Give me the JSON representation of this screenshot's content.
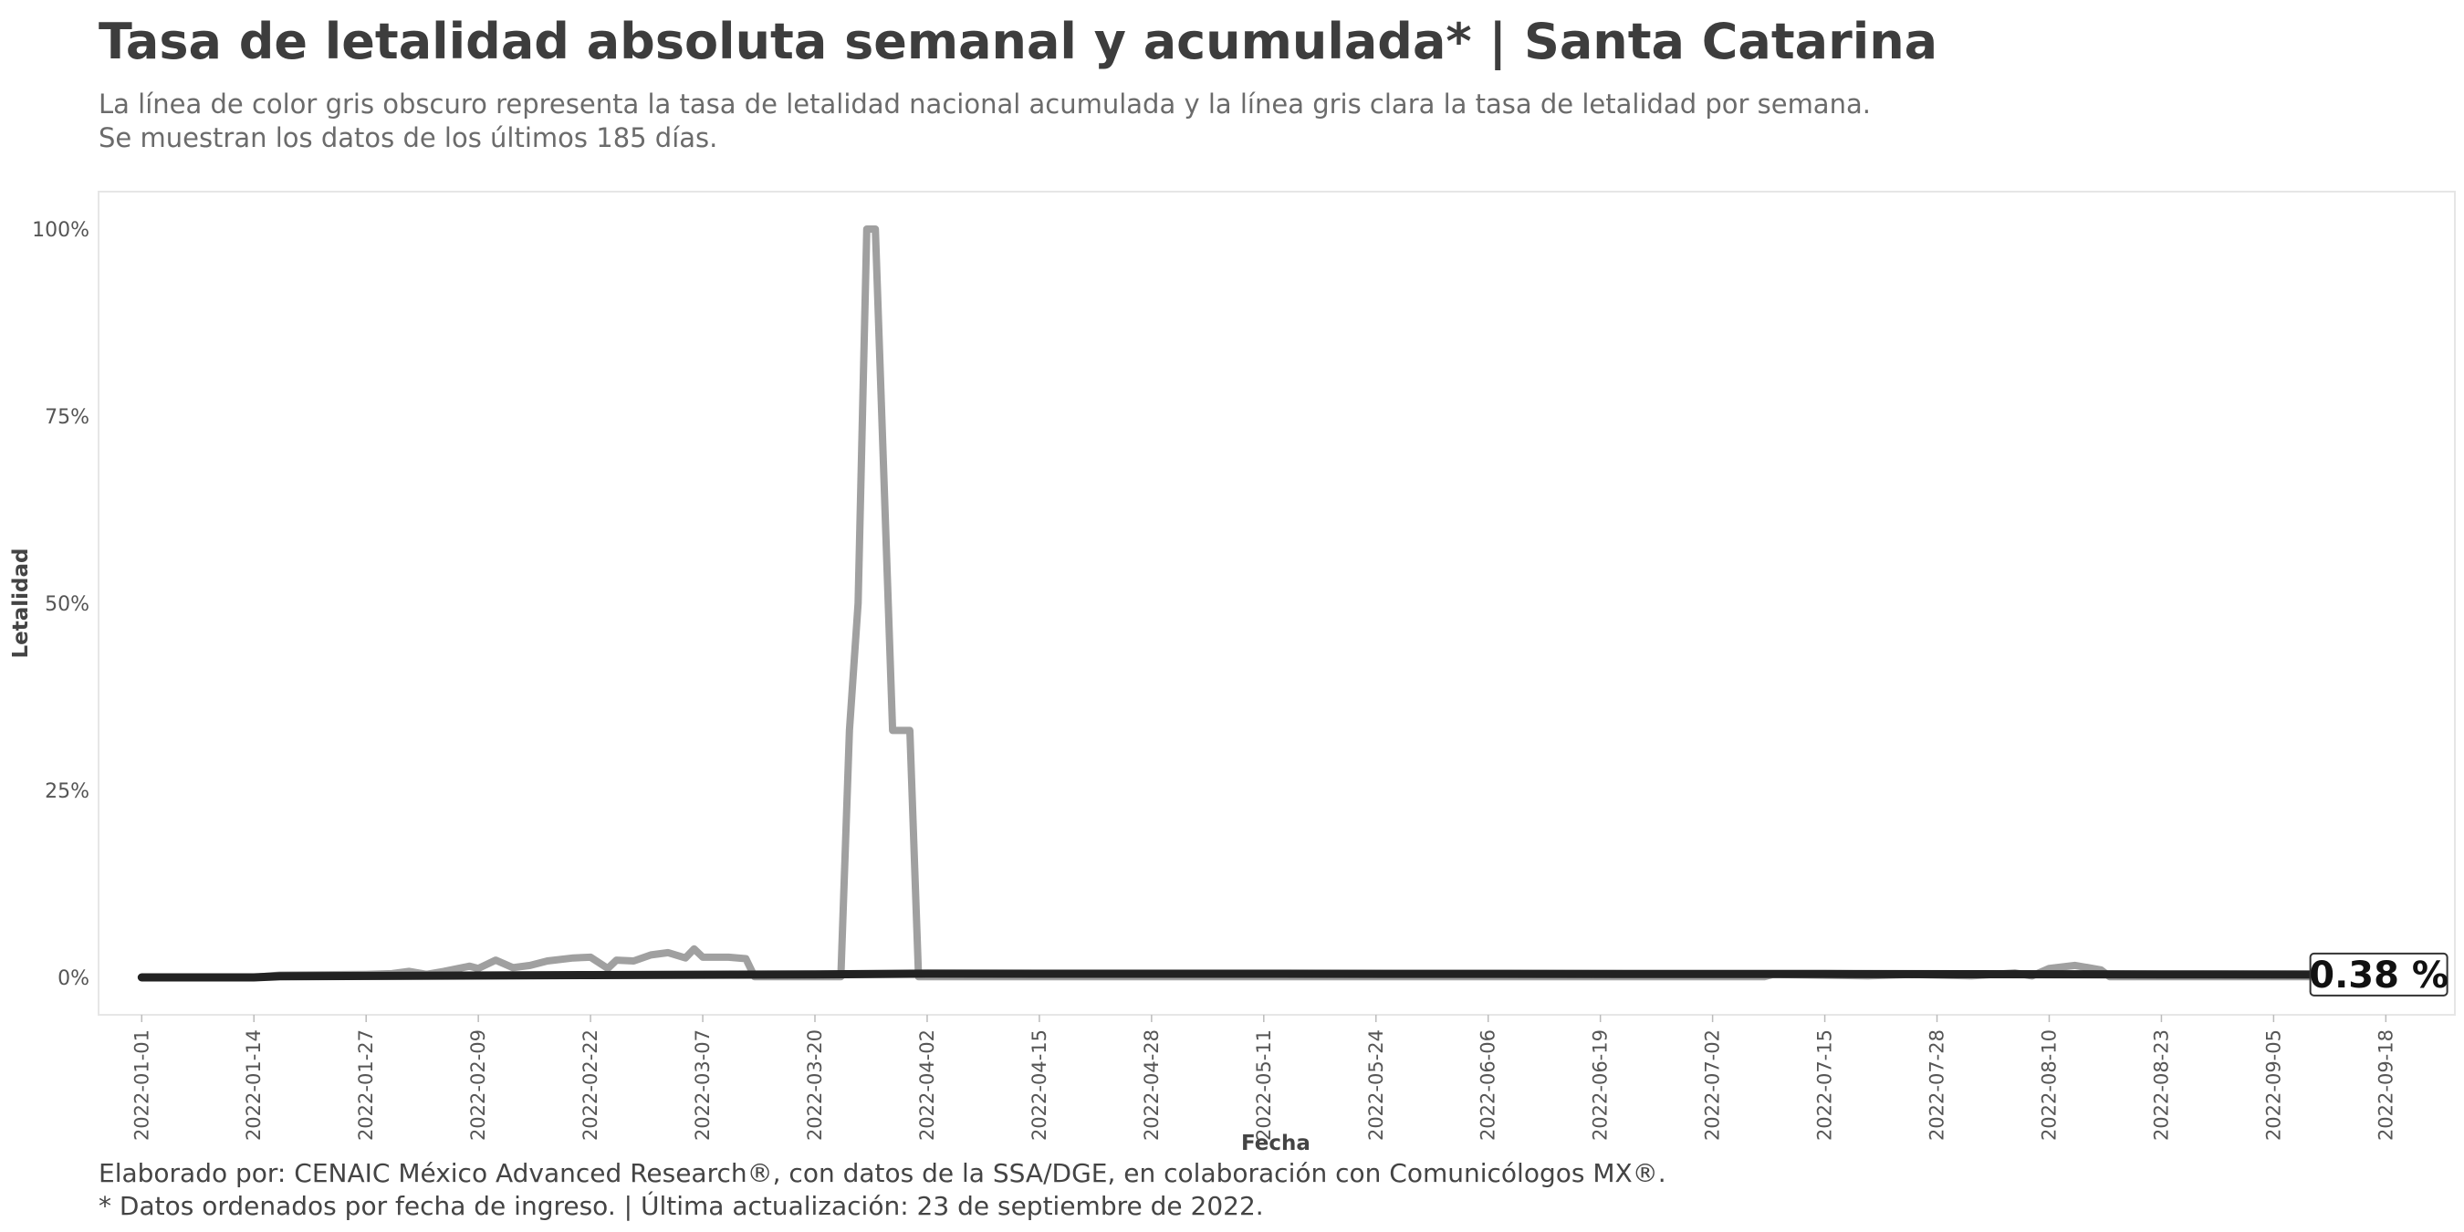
{
  "title": "Tasa de letalidad absoluta semanal y acumulada* | Santa Catarina",
  "subtitle": [
    "La línea de color gris obscuro representa la tasa de letalidad nacional acumulada y la línea gris clara la tasa de letalidad por semana.",
    "Se muestran los datos de los últimos 185 días."
  ],
  "caption": [
    "Elaborado por: CENAIC México Advanced Research®, con datos de la SSA/DGE, en colaboración con Comunicólogos MX®.",
    "* Datos ordenados por fecha de ingreso. | Última actualización: 23 de septiembre de 2022."
  ],
  "chart_data": {
    "type": "line",
    "xlabel": "Fecha",
    "ylabel": "Letalidad",
    "x_ticks": [
      "2022-01-01",
      "2022-01-14",
      "2022-01-27",
      "2022-02-09",
      "2022-02-22",
      "2022-03-07",
      "2022-03-20",
      "2022-04-02",
      "2022-04-15",
      "2022-04-28",
      "2022-05-11",
      "2022-05-24",
      "2022-06-06",
      "2022-06-19",
      "2022-07-02",
      "2022-07-15",
      "2022-07-28",
      "2022-08-10",
      "2022-08-23",
      "2022-09-05",
      "2022-09-18"
    ],
    "y_ticks": [
      "0%",
      "25%",
      "50%",
      "75%",
      "100%"
    ],
    "xlim": [
      "2021-12-27",
      "2022-09-26"
    ],
    "ylim": [
      -5,
      105
    ],
    "grid": false,
    "end_label": "0.38 %",
    "colors": {
      "weekly": "#a0a0a0",
      "cumulative": "#222222",
      "panel_border": "#e6e6e6"
    },
    "series": [
      {
        "role": "weekly",
        "points": [
          [
            "2022-01-01",
            0
          ],
          [
            "2022-01-14",
            0
          ],
          [
            "2022-01-17",
            0.3
          ],
          [
            "2022-01-27",
            0.4
          ],
          [
            "2022-01-30",
            0.5
          ],
          [
            "2022-02-01",
            0.8
          ],
          [
            "2022-02-03",
            0.4
          ],
          [
            "2022-02-05",
            0.8
          ],
          [
            "2022-02-08",
            1.5
          ],
          [
            "2022-02-09",
            1.2
          ],
          [
            "2022-02-11",
            2.3
          ],
          [
            "2022-02-13",
            1.3
          ],
          [
            "2022-02-15",
            1.6
          ],
          [
            "2022-02-17",
            2.2
          ],
          [
            "2022-02-20",
            2.6
          ],
          [
            "2022-02-22",
            2.7
          ],
          [
            "2022-02-24",
            1.2
          ],
          [
            "2022-02-25",
            2.3
          ],
          [
            "2022-02-27",
            2.2
          ],
          [
            "2022-03-01",
            3.0
          ],
          [
            "2022-03-03",
            3.3
          ],
          [
            "2022-03-05",
            2.6
          ],
          [
            "2022-03-06",
            3.8
          ],
          [
            "2022-03-07",
            2.7
          ],
          [
            "2022-03-10",
            2.7
          ],
          [
            "2022-03-12",
            2.5
          ],
          [
            "2022-03-13",
            0.1
          ],
          [
            "2022-03-23",
            0.1
          ],
          [
            "2022-03-24",
            33
          ],
          [
            "2022-03-25",
            50
          ],
          [
            "2022-03-26",
            100
          ],
          [
            "2022-03-27",
            100
          ],
          [
            "2022-03-29",
            33
          ],
          [
            "2022-03-31",
            33
          ],
          [
            "2022-04-01",
            0.1
          ],
          [
            "2022-07-08",
            0.1
          ],
          [
            "2022-07-09",
            0.4
          ],
          [
            "2022-07-20",
            0.2
          ],
          [
            "2022-07-25",
            0.4
          ],
          [
            "2022-08-01",
            0.2
          ],
          [
            "2022-08-06",
            0.6
          ],
          [
            "2022-08-08",
            0.2
          ],
          [
            "2022-08-10",
            1.2
          ],
          [
            "2022-08-13",
            1.6
          ],
          [
            "2022-08-16",
            1.0
          ],
          [
            "2022-08-17",
            0.1
          ],
          [
            "2022-09-17",
            0.1
          ],
          [
            "2022-09-19",
            0.2
          ],
          [
            "2022-09-23",
            0.2
          ]
        ]
      },
      {
        "role": "cumulative",
        "points": [
          [
            "2022-01-01",
            0
          ],
          [
            "2022-01-14",
            0
          ],
          [
            "2022-01-17",
            0.15
          ],
          [
            "2022-02-22",
            0.3
          ],
          [
            "2022-03-20",
            0.4
          ],
          [
            "2022-04-02",
            0.5
          ],
          [
            "2022-07-15",
            0.45
          ],
          [
            "2022-08-23",
            0.4
          ],
          [
            "2022-09-23",
            0.38
          ]
        ]
      }
    ]
  }
}
